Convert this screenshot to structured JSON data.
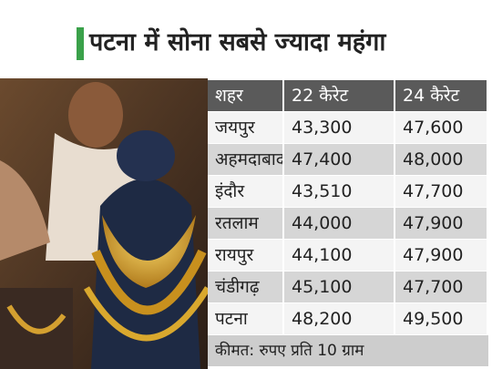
{
  "header": {
    "title": "पटना में सोना सबसे ज्यादा महंगा"
  },
  "table": {
    "columns": [
      "शहर",
      "22 कैरेट",
      "24 कैरेट"
    ],
    "rows": [
      [
        "जयपुर",
        "43,300",
        "47,600"
      ],
      [
        "अहमदाबाद",
        "47,400",
        "48,000"
      ],
      [
        "इंदौर",
        "43,510",
        "47,700"
      ],
      [
        "रतलाम",
        "44,000",
        "47,900"
      ],
      [
        "रायपुर",
        "44,100",
        "47,900"
      ],
      [
        "चंडीगढ़",
        "45,100",
        "47,700"
      ],
      [
        "पटना",
        "48,200",
        "49,500"
      ]
    ],
    "footer": "कीमत: रुपए प्रति 10 ग्राम"
  }
}
